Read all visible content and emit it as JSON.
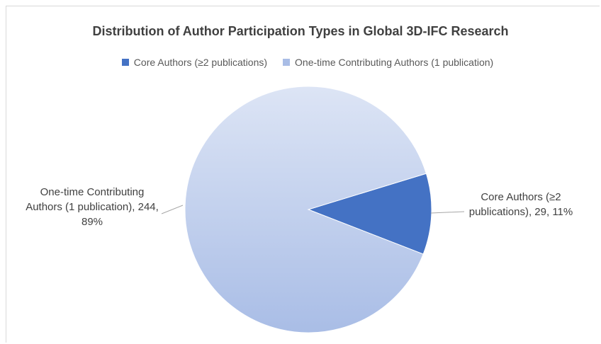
{
  "chart_data": {
    "type": "pie",
    "title": "Distribution of Author Participation Types in Global 3D-IFC Research",
    "categories": [
      "Core Authors (≥2 publications)",
      "One-time Contributing Authors (1 publication)"
    ],
    "values": [
      29,
      244
    ],
    "value_labels": [
      "Core Authors (≥2 publications), 29, 11%",
      "One-time Contributing Authors (1 publication), 244, 89%"
    ],
    "colors": [
      "#4472c4",
      "#a9bde6"
    ],
    "legend": "top"
  }
}
